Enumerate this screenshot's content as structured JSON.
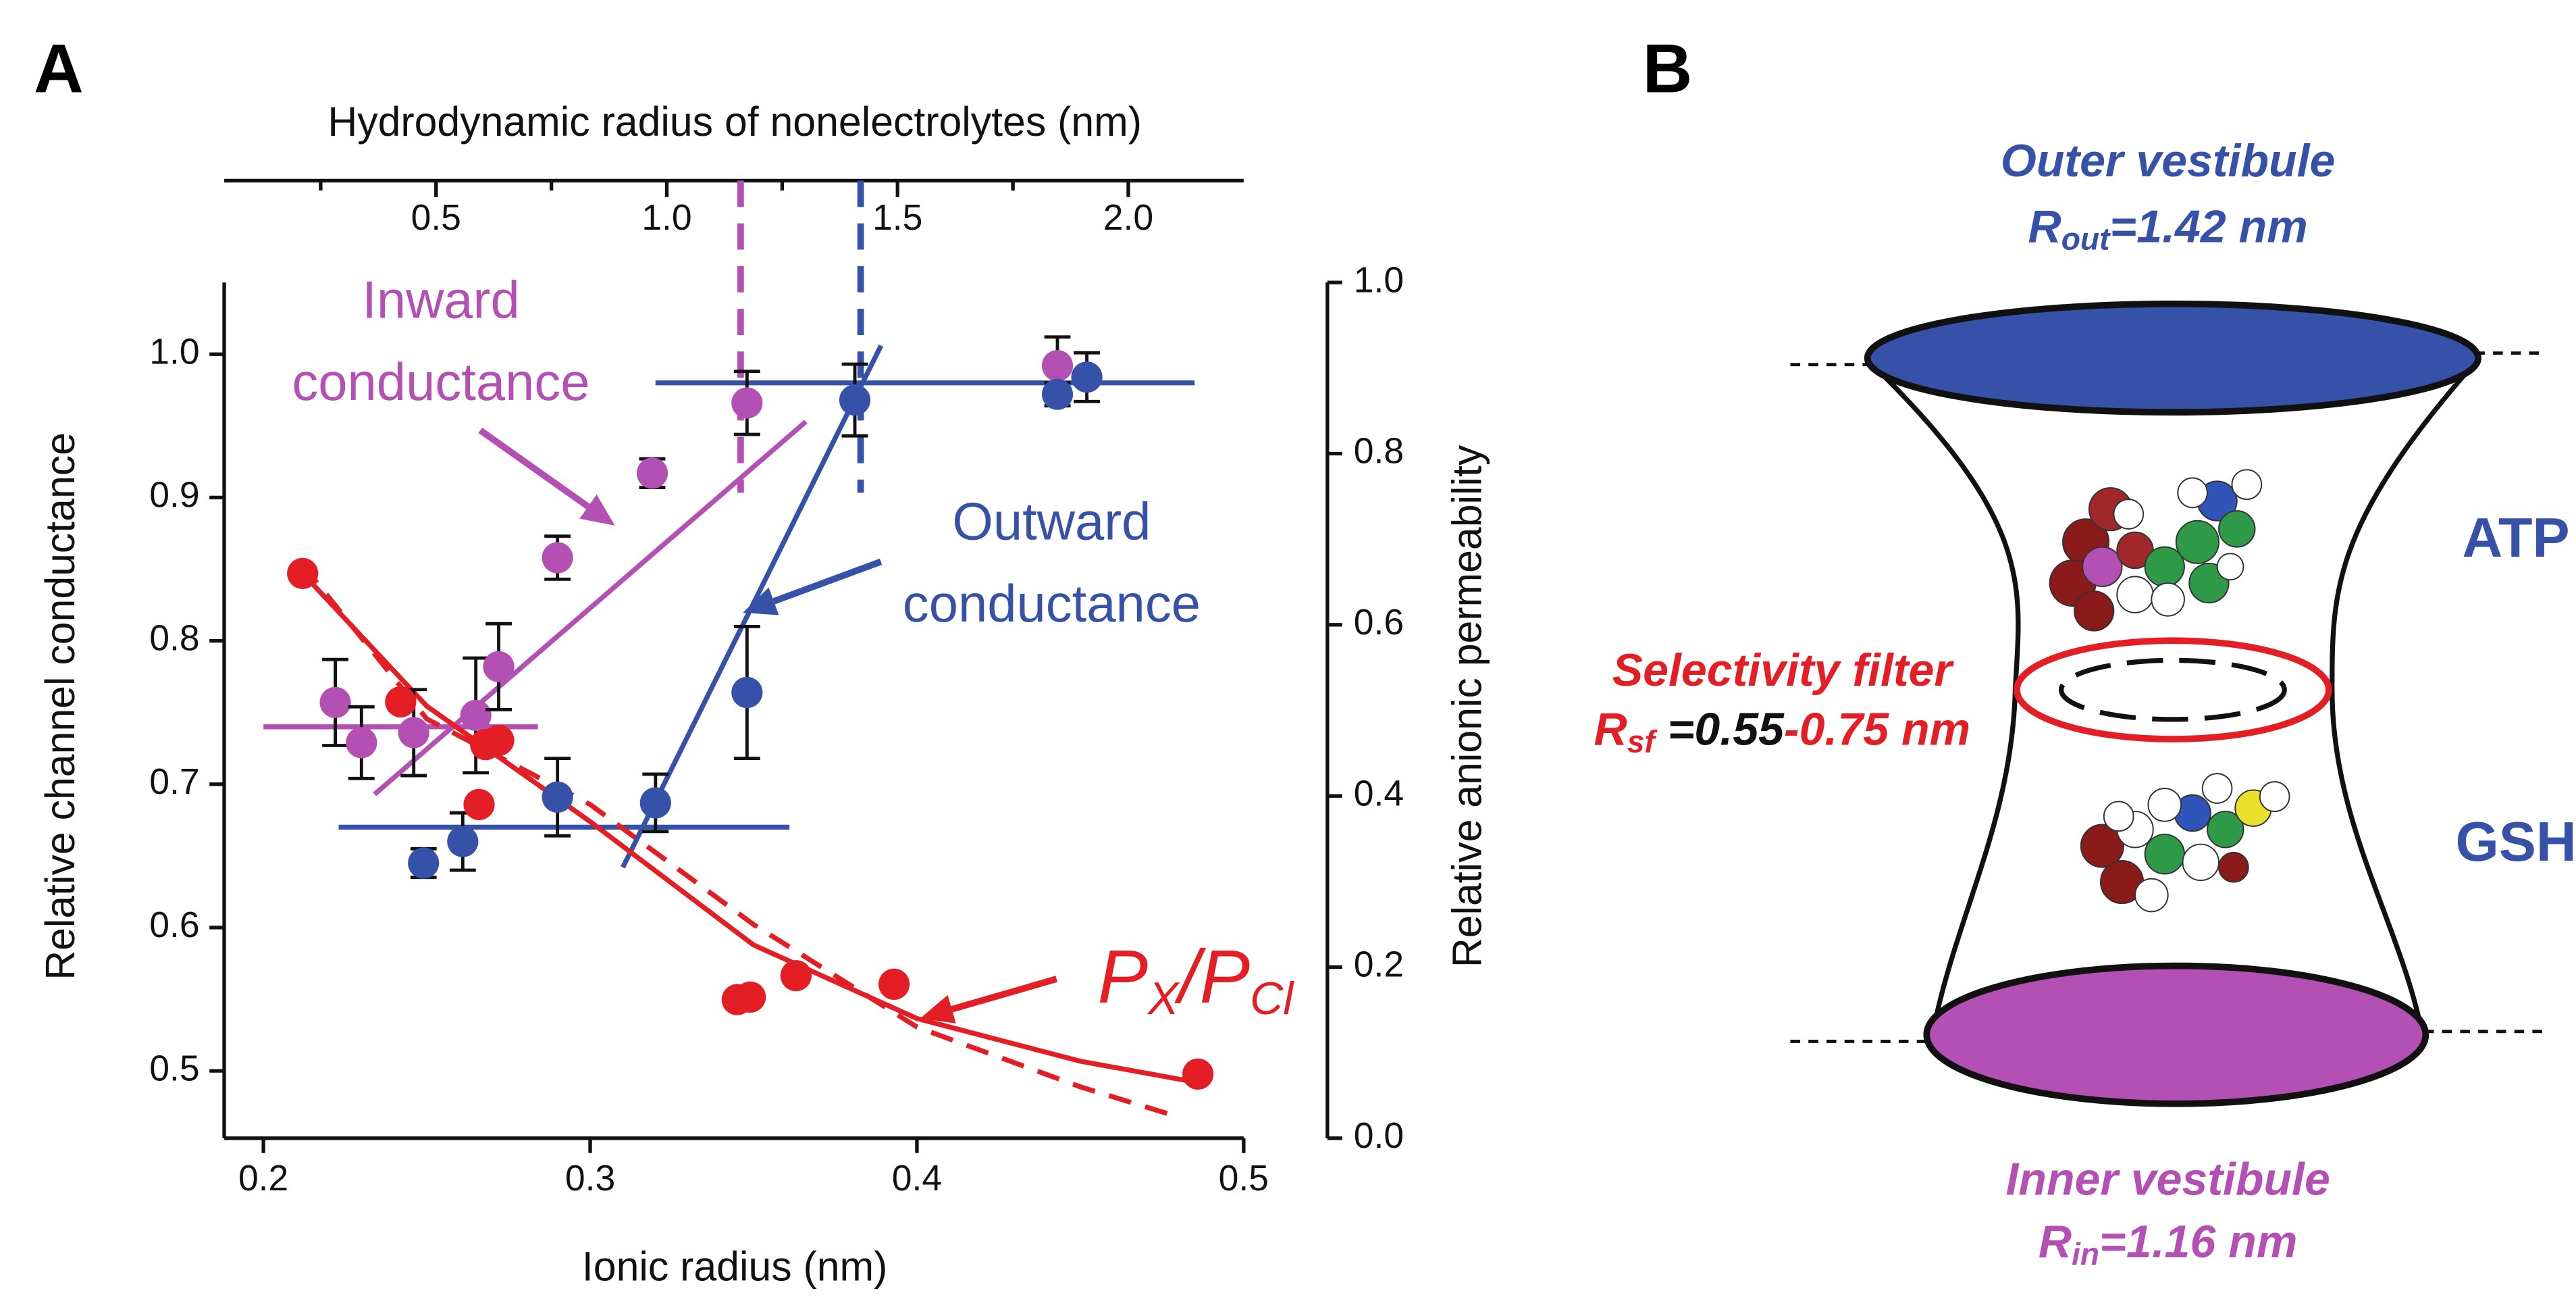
{
  "panel_labels": [
    "A",
    "B"
  ],
  "chart_data": {
    "type": "scatter",
    "xlabel": "Ionic radius (nm)",
    "ylabel": "Relative channel conductance",
    "y2label": "Relative anionic permeability",
    "x2label": "Hydrodynamic radius of nonelectrolytes (nm)",
    "xlim": [
      0.188,
      0.5
    ],
    "xticks": [
      0.2,
      0.3,
      0.4,
      0.5
    ],
    "ylim": [
      0.453,
      1.05
    ],
    "yticks": [
      0.5,
      0.6,
      0.7,
      0.8,
      0.9,
      {
        "value": 1,
        "label": "1.0"
      }
    ],
    "y2lim": [
      0,
      1
    ],
    "y2ticks": [
      {
        "value": 0,
        "label": "0.0"
      },
      0.2,
      0.4,
      0.6,
      0.8,
      {
        "value": 1,
        "label": "1.0"
      }
    ],
    "x2lim": [
      0.041,
      2.25
    ],
    "x2ticks": [
      0.5,
      {
        "value": 1,
        "label": "1.0"
      },
      1.5,
      {
        "value": 2,
        "label": "2.0"
      }
    ],
    "x2minor_ticks": [
      0.25,
      0.75,
      1.25,
      1.75
    ],
    "reference_lines": [
      {
        "axis": "x2",
        "value": 1.16,
        "color": "#b44fb4"
      },
      {
        "axis": "x2",
        "value": 1.42,
        "color": "#3651a8"
      }
    ],
    "series": [
      {
        "color": "#b44fb4",
        "x": [
          0.222,
          0.23,
          0.246,
          0.265,
          0.272,
          0.29,
          0.319,
          0.348,
          0.443
        ],
        "values": [
          0.757,
          0.729,
          0.736,
          0.748,
          0.782,
          0.858,
          0.917,
          0.966,
          0.992
        ],
        "errors": [
          0.03,
          0.025,
          0.03,
          0.04,
          0.03,
          0.015,
          0.01,
          0.022,
          0.02
        ]
      },
      {
        "color": "#3651a8",
        "x": [
          0.249,
          0.261,
          0.29,
          0.32,
          0.348,
          0.381,
          0.443,
          0.452
        ],
        "values": [
          0.645,
          0.66,
          0.691,
          0.687,
          0.764,
          0.968,
          0.972,
          0.984
        ],
        "errors": [
          0.01,
          0.02,
          0.027,
          0.02,
          0.046,
          0.025,
          0.008,
          0.017
        ]
      },
      {
        "color": "#e31e24",
        "axis": "y2",
        "x": [
          0.212,
          0.242,
          0.268,
          0.272,
          0.266,
          0.345,
          0.349,
          0.363,
          0.393,
          0.486
        ],
        "values": [
          0.66,
          0.51,
          0.46,
          0.465,
          0.39,
          0.162,
          0.165,
          0.19,
          0.18,
          0.075
        ]
      }
    ],
    "lines": [
      {
        "color": "#b44fb4",
        "x": [
          0.2,
          0.284
        ],
        "values": [
          0.74,
          0.74
        ]
      },
      {
        "color": "#b44fb4",
        "x": [
          0.234,
          0.366
        ],
        "values": [
          0.693,
          0.953
        ]
      },
      {
        "color": "#3651a8",
        "x": [
          0.223,
          0.361
        ],
        "values": [
          0.67,
          0.67
        ]
      },
      {
        "color": "#3651a8",
        "x": [
          0.31,
          0.389
        ],
        "values": [
          0.642,
          1.006
        ]
      },
      {
        "color": "#3651a8",
        "x": [
          0.32,
          0.485
        ],
        "values": [
          0.98,
          0.98
        ]
      },
      {
        "color": "#e31e24",
        "axis": "y2",
        "x": [
          0.212,
          0.25,
          0.3,
          0.35,
          0.4,
          0.45,
          0.486
        ],
        "values": [
          0.66,
          0.505,
          0.37,
          0.226,
          0.14,
          0.09,
          0.065
        ]
      },
      {
        "color": "#e31e24",
        "axis": "y2",
        "style": "dashed",
        "x": [
          0.212,
          0.25,
          0.3,
          0.35,
          0.4,
          0.45,
          0.48
        ],
        "values": [
          0.67,
          0.49,
          0.39,
          0.25,
          0.13,
          0.06,
          0.025
        ]
      }
    ],
    "annotations": [
      {
        "lines": [
          "Inward",
          "conductance"
        ],
        "color": "#b44fb4"
      },
      {
        "lines": [
          "Outward",
          "conductance"
        ],
        "color": "#3651a8"
      },
      {
        "parts": [
          "P",
          "X",
          "/",
          "P",
          "Cl"
        ],
        "color": "#e31e24"
      }
    ]
  },
  "diagram": {
    "outer": {
      "title": "Outer vestibule",
      "symbol": "R",
      "subscript": "out",
      "value_text": "=1.42 nm"
    },
    "inner": {
      "title": "Inner vestibule",
      "symbol": "R",
      "subscript": "in",
      "value_text": "=1.16 nm"
    },
    "filter": {
      "title": "Selectivity filter",
      "symbol": "R",
      "subscript": "sf",
      "value_low": " =0.55",
      "value_high": "-0.75 nm"
    },
    "molecules": [
      "ATP",
      "GSH"
    ]
  }
}
